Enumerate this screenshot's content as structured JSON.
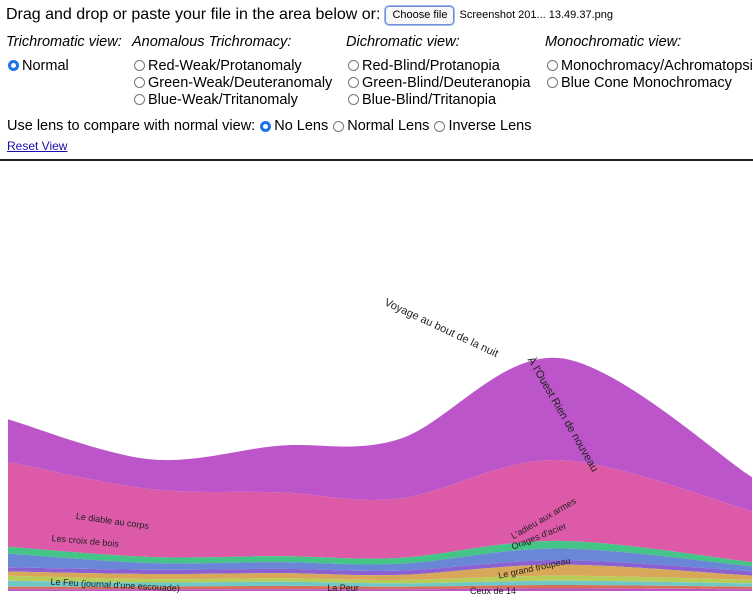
{
  "upload": {
    "label": "Drag and drop or paste your file in the area below or:",
    "button_label": "Choose file",
    "file_name": "Screenshot 201... 13.49.37.png"
  },
  "views": {
    "trichromatic": {
      "header": "Trichromatic view:",
      "options": [
        "Normal"
      ],
      "selected": "Normal"
    },
    "anomalous": {
      "header": "Anomalous Trichromacy:",
      "options": [
        "Red-Weak/Protanomaly",
        "Green-Weak/Deuteranomaly",
        "Blue-Weak/Tritanomaly"
      ]
    },
    "dichromatic": {
      "header": "Dichromatic view:",
      "options": [
        "Red-Blind/Protanopia",
        "Green-Blind/Deuteranopia",
        "Blue-Blind/Tritanopia"
      ]
    },
    "monochromatic": {
      "header": "Monochromatic view:",
      "options": [
        "Monochromacy/Achromatopsi",
        "Blue Cone Monochromacy"
      ]
    }
  },
  "lens": {
    "label": "Use lens to compare with normal view:",
    "options": [
      "No Lens",
      "Normal Lens",
      "Inverse Lens"
    ],
    "selected": "No Lens"
  },
  "reset_label": "Reset View",
  "colors": {
    "radio_selected": "#1a73e8",
    "link": "#1a0dab",
    "stream_colors": [
      "#bb55c9",
      "#dd5aa8",
      "#44c486",
      "#6a86d6",
      "#8a61d2",
      "#d9a75a",
      "#b7cd58",
      "#6fc8c6",
      "#d46f5c"
    ]
  },
  "chart_data": {
    "type": "area",
    "x": [
      0,
      1,
      2,
      3,
      4,
      5
    ],
    "series": [
      {
        "name": "Voyage au bout de la nuit",
        "values": [
          0.5,
          0.35,
          0.55,
          0.7,
          1.2,
          0.4
        ]
      },
      {
        "name": "À l'Ouest Rien de nouveau",
        "values": [
          1.0,
          0.8,
          0.75,
          0.7,
          0.95,
          0.6
        ]
      },
      {
        "name": "Le diable au corps",
        "values": [
          0.08,
          0.07,
          0.07,
          0.07,
          0.09,
          0.05
        ]
      },
      {
        "name": "Les croix de bois",
        "values": [
          0.16,
          0.08,
          0.08,
          0.08,
          0.14,
          0.06
        ]
      },
      {
        "name": "L'adieu aux armes",
        "values": [
          0.05,
          0.05,
          0.05,
          0.05,
          0.05,
          0.05
        ]
      },
      {
        "name": "Orages d'acier",
        "values": [
          0.05,
          0.06,
          0.06,
          0.06,
          0.13,
          0.05
        ]
      },
      {
        "name": "Le grand troupeau",
        "values": [
          0.06,
          0.04,
          0.04,
          0.04,
          0.06,
          0.04
        ]
      },
      {
        "name": "Le Feu (journal d'une escouade)",
        "values": [
          0.07,
          0.05,
          0.05,
          0.04,
          0.05,
          0.04
        ]
      },
      {
        "name": "La Peur",
        "values": [
          0.03,
          0.03,
          0.04,
          0.03,
          0.04,
          0.03
        ]
      },
      {
        "name": "Ceux de 14",
        "values": [
          0.02,
          0.02,
          0.02,
          0.02,
          0.03,
          0.02
        ]
      }
    ],
    "labels": [
      "Voyage au bout de la nuit",
      "À l'Ouest Rien de nouveau",
      "Le diable au corps",
      "Les croix de bois",
      "L'adieu aux armes",
      "Orages d'acier",
      "Le grand troupeau",
      "Le Feu (journal d'une escouade)",
      "La Peur",
      "Ceux de 14"
    ]
  }
}
